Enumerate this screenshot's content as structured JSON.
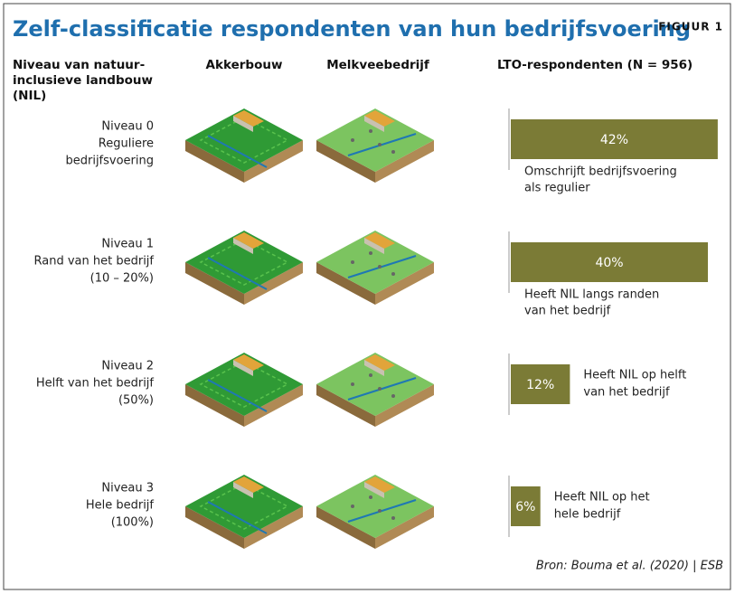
{
  "header": {
    "title": "Zelf-classificatie respondenten van hun bedrijfsvoering",
    "figure": "FIGUUR 1"
  },
  "columns": {
    "level": [
      "Niveau van natuur-",
      "inclusieve landbouw",
      "(NIL)"
    ],
    "arable": "Akkerbouw",
    "dairy": "Melkveebedrijf",
    "respondents": "LTO-respondenten (N = 956)"
  },
  "rows": [
    {
      "label": [
        "Niveau 0",
        "Reguliere",
        "bedrijfsvoering"
      ],
      "value": 42,
      "value_label": "42%",
      "description": [
        "Omschrijft bedrijfsvoering",
        "als regulier"
      ]
    },
    {
      "label": [
        "Niveau 1",
        "Rand van het bedrijf",
        "(10 – 20%)"
      ],
      "value": 40,
      "value_label": "40%",
      "description": [
        "Heeft NIL langs randen",
        "van het bedrijf"
      ]
    },
    {
      "label": [
        "Niveau 2",
        "Helft van het bedrijf",
        "(50%)"
      ],
      "value": 12,
      "value_label": "12%",
      "description": [
        "Heeft NIL op helft",
        "van het bedrijf"
      ]
    },
    {
      "label": [
        "Niveau 3",
        "Hele bedrijf",
        "(100%)"
      ],
      "value": 6,
      "value_label": "6%",
      "description": [
        "Heeft NIL op het",
        "hele bedrijf"
      ]
    }
  ],
  "source": "Bron: Bouma et al. (2020) | ESB"
}
